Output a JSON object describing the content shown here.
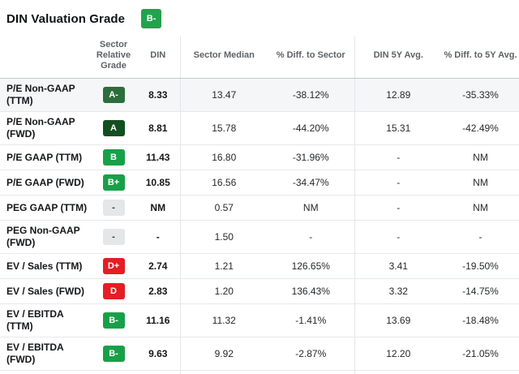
{
  "title": "DIN Valuation Grade",
  "overall_grade": "B-",
  "colors": {
    "overall_badge": "#23A24D",
    "grades": {
      "A": "#124E20",
      "A-": "#2C6E3B",
      "B+": "#18A048",
      "B": "#18A048",
      "B-": "#18A048",
      "D+": "#E41E25",
      "D": "#E41E25",
      "-": "#E4E6E8"
    },
    "grade_text_dark": "#2B2F33",
    "highlight_row_bg": "#F5F6F7"
  },
  "columns": {
    "0": "",
    "1": "Sector Relative Grade",
    "2": "DIN",
    "3": "Sector Median",
    "4": "% Diff. to Sector",
    "5": "DIN 5Y Avg.",
    "6": "% Diff. to 5Y Avg."
  },
  "rows": [
    {
      "metric_lines": [
        "P/E Non-GAAP",
        "(TTM)"
      ],
      "grade": "A-",
      "din": "8.33",
      "sector_median": "13.47",
      "diff_sector": "-38.12%",
      "avg_5y": "12.89",
      "diff_5y": "-35.33%",
      "highlighted": true
    },
    {
      "metric_lines": [
        "P/E Non-GAAP",
        "(FWD)"
      ],
      "grade": "A",
      "din": "8.81",
      "sector_median": "15.78",
      "diff_sector": "-44.20%",
      "avg_5y": "15.31",
      "diff_5y": "-42.49%",
      "highlighted": false
    },
    {
      "metric_lines": [
        "P/E GAAP (TTM)"
      ],
      "grade": "B",
      "din": "11.43",
      "sector_median": "16.80",
      "diff_sector": "-31.96%",
      "avg_5y": "-",
      "diff_5y": "NM",
      "highlighted": false
    },
    {
      "metric_lines": [
        "P/E GAAP (FWD)"
      ],
      "grade": "B+",
      "din": "10.85",
      "sector_median": "16.56",
      "diff_sector": "-34.47%",
      "avg_5y": "-",
      "diff_5y": "NM",
      "highlighted": false
    },
    {
      "metric_lines": [
        "PEG GAAP (TTM)"
      ],
      "grade": "-",
      "din": "NM",
      "sector_median": "0.57",
      "diff_sector": "NM",
      "avg_5y": "-",
      "diff_5y": "NM",
      "highlighted": false
    },
    {
      "metric_lines": [
        "PEG Non-GAAP",
        "(FWD)"
      ],
      "grade": "-",
      "din": "-",
      "sector_median": "1.50",
      "diff_sector": "-",
      "avg_5y": "-",
      "diff_5y": "-",
      "highlighted": false
    },
    {
      "metric_lines": [
        "EV / Sales (TTM)"
      ],
      "grade": "D+",
      "din": "2.74",
      "sector_median": "1.21",
      "diff_sector": "126.65%",
      "avg_5y": "3.41",
      "diff_5y": "-19.50%",
      "highlighted": false
    },
    {
      "metric_lines": [
        "EV / Sales (FWD)"
      ],
      "grade": "D",
      "din": "2.83",
      "sector_median": "1.20",
      "diff_sector": "136.43%",
      "avg_5y": "3.32",
      "diff_5y": "-14.75%",
      "highlighted": false
    },
    {
      "metric_lines": [
        "EV / EBITDA",
        "(TTM)"
      ],
      "grade": "B-",
      "din": "11.16",
      "sector_median": "11.32",
      "diff_sector": "-1.41%",
      "avg_5y": "13.69",
      "diff_5y": "-18.48%",
      "highlighted": false
    },
    {
      "metric_lines": [
        "EV / EBITDA",
        "(FWD)"
      ],
      "grade": "B-",
      "din": "9.63",
      "sector_median": "9.92",
      "diff_sector": "-2.87%",
      "avg_5y": "12.20",
      "diff_5y": "-21.05%",
      "highlighted": false
    }
  ]
}
